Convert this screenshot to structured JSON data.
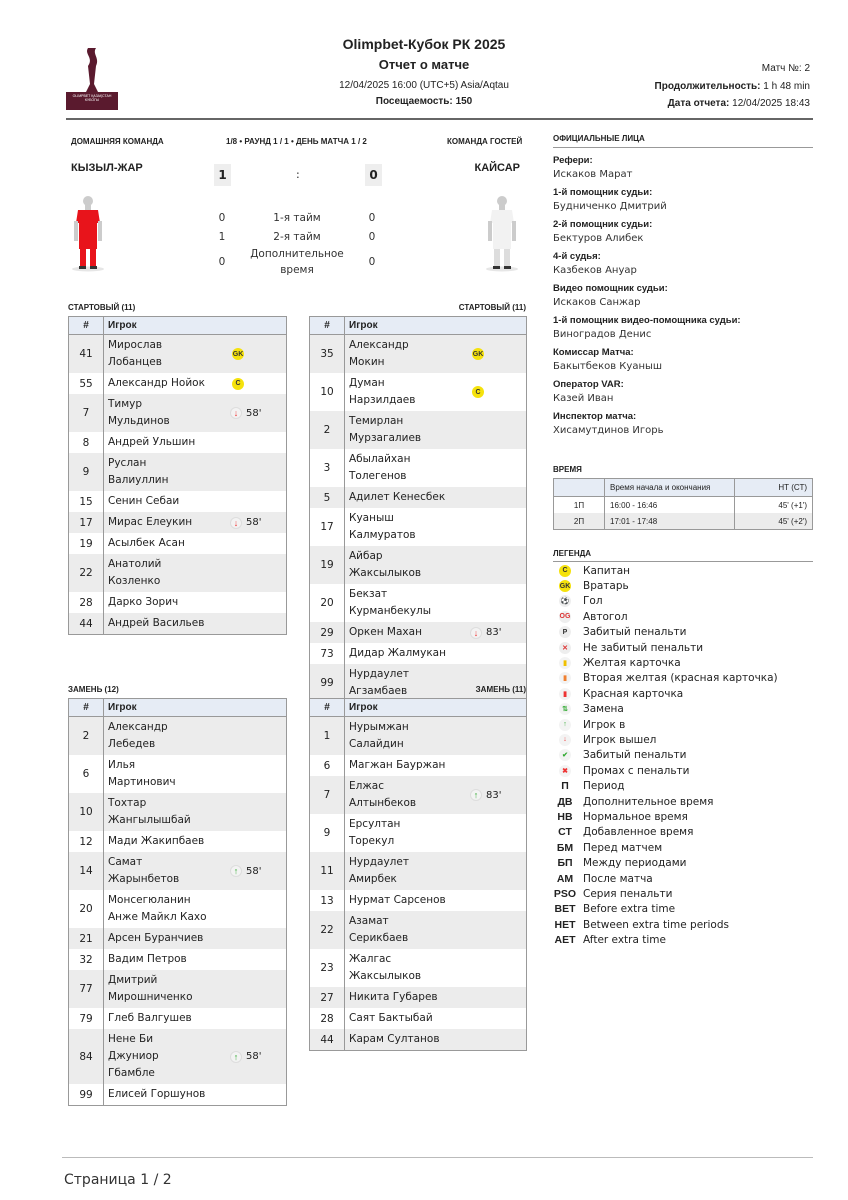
{
  "header": {
    "competition": "Olimpbet-Кубок РК 2025",
    "report_title": "Отчет о матче",
    "datetime": "12/04/2025 16:00 (UTC+5) Asia/Aqtau",
    "attendance_label": "Посещаемость:",
    "attendance": "150",
    "match_no_label": "Матч №:",
    "match_no": "2",
    "duration_label": "Продолжительность:",
    "duration": "1 h 48 min",
    "report_date_label": "Дата отчета:",
    "report_date": "12/04/2025 18:43",
    "logo_text": "OLIMPBET ҚАЗАҚСТАН КУБОГЫ"
  },
  "match": {
    "home_label": "ДОМАШНЯЯ КОМАНДА",
    "away_label": "КОМАНДА ГОСТЕЙ",
    "round": "1/8 • РАУНД 1 / 1 • ДЕНЬ МАТЧА 1 / 2",
    "home_team": "КЫЗЫЛ-ЖАР",
    "away_team": "КАЙСАР",
    "home_score": "1",
    "away_score": "0",
    "separator": ":",
    "home_kit_color": "#e8141b",
    "away_kit_color": "#f2f2f2",
    "periods": [
      {
        "label": "1-я тайм",
        "home": "0",
        "away": "0"
      },
      {
        "label": "2-я тайм",
        "home": "1",
        "away": "0"
      },
      {
        "label": "Дополнительное\nвремя",
        "home": "0",
        "away": "0"
      }
    ]
  },
  "tables": {
    "col_num": "#",
    "col_player": "Игрок",
    "home_start_title": "СТАРТОВЫЙ (11)",
    "away_start_title": "СТАРТОВЫЙ (11)",
    "home_subs_title": "ЗАМЕНЬ (12)",
    "away_subs_title": "ЗАМЕНЬ (11)",
    "home_start": [
      {
        "num": "41",
        "name": "Мирослав\nЛобанцев",
        "badge": "GK"
      },
      {
        "num": "55",
        "name": "Александр Нойок",
        "badge": "C"
      },
      {
        "num": "7",
        "name": "Тимур\nМульдинов",
        "event": "sub-out",
        "minute": "58'"
      },
      {
        "num": "8",
        "name": "Андрей Ульшин"
      },
      {
        "num": "9",
        "name": "Руслан\nВалиуллин"
      },
      {
        "num": "15",
        "name": "Сенин Себаи"
      },
      {
        "num": "17",
        "name": "Мирас Елеукин",
        "event": "sub-out",
        "minute": "58'"
      },
      {
        "num": "19",
        "name": "Асылбек Асан"
      },
      {
        "num": "22",
        "name": "Анатолий\nКозленко"
      },
      {
        "num": "28",
        "name": "Дарко Зорич"
      },
      {
        "num": "44",
        "name": "Андрей Васильев"
      }
    ],
    "away_start": [
      {
        "num": "35",
        "name": "Александр\nМокин",
        "badge": "GK"
      },
      {
        "num": "10",
        "name": "Думан\nНарзилдаев",
        "badge": "C"
      },
      {
        "num": "2",
        "name": "Темирлан\nМурзагалиев"
      },
      {
        "num": "3",
        "name": "Абылайхан\nТолегенов"
      },
      {
        "num": "5",
        "name": "Адилет Кенесбек"
      },
      {
        "num": "17",
        "name": "Куаныш\nКалмуратов"
      },
      {
        "num": "19",
        "name": "Айбар\nЖаксылыков"
      },
      {
        "num": "20",
        "name": "Бекзат\nКурманбекулы"
      },
      {
        "num": "29",
        "name": "Оркен Махан",
        "event": "sub-out",
        "minute": "83'"
      },
      {
        "num": "73",
        "name": "Дидар Жалмукан"
      },
      {
        "num": "99",
        "name": "Нурдаулет\nАгзамбаев"
      }
    ],
    "home_subs": [
      {
        "num": "2",
        "name": "Александр\nЛебедев"
      },
      {
        "num": "6",
        "name": "Илья\nМартинович"
      },
      {
        "num": "10",
        "name": "Тохтар\nЖангылышбай"
      },
      {
        "num": "12",
        "name": "Мади Жакипбаев"
      },
      {
        "num": "14",
        "name": "Самат\nЖарынбетов",
        "event": "sub-in",
        "minute": "58'"
      },
      {
        "num": "20",
        "name": "Монсегюланин\nАнже Майкл Кахо"
      },
      {
        "num": "21",
        "name": "Арсен Буранчиев"
      },
      {
        "num": "32",
        "name": "Вадим Петров"
      },
      {
        "num": "77",
        "name": "Дмитрий\nМирошниченко"
      },
      {
        "num": "79",
        "name": "Глеб Валгушев"
      },
      {
        "num": "84",
        "name": "Нене Би\nДжуниор\nГбамбле",
        "event": "sub-in",
        "minute": "58'"
      },
      {
        "num": "99",
        "name": "Елисей Горшунов\n "
      }
    ],
    "away_subs": [
      {
        "num": "1",
        "name": "Нурымжан\nСалайдин"
      },
      {
        "num": "6",
        "name": "Магжан Бауржан"
      },
      {
        "num": "7",
        "name": "Елжас\nАлтынбеков",
        "event": "sub-in",
        "minute": "83'"
      },
      {
        "num": "9",
        "name": "Ерсултан\nТорекул"
      },
      {
        "num": "11",
        "name": "Нурдаулет\nАмирбек"
      },
      {
        "num": "13",
        "name": "Нурмат Сарсенов"
      },
      {
        "num": "22",
        "name": "Азамат\nСерикбаев"
      },
      {
        "num": "23",
        "name": "Жалгас\nЖаксылыков"
      },
      {
        "num": "27",
        "name": "Никита Губарев"
      },
      {
        "num": "28",
        "name": "Саят Бактыбай"
      },
      {
        "num": "44",
        "name": "Карам Султанов"
      }
    ]
  },
  "officials": {
    "title": "ОФИЦИАЛЬНЫЕ ЛИЦА",
    "items": [
      {
        "role": "Рефери:",
        "name": "Искаков Марат"
      },
      {
        "role": "1-й помощник судьи:",
        "name": "Будниченко Дмитрий"
      },
      {
        "role": "2-й помощник судьи:",
        "name": "Бектуров Алибек"
      },
      {
        "role": "4-й судья:",
        "name": "Казбеков Ануар"
      },
      {
        "role": "Видео помощник судьи:",
        "name": "Искаков Санжар"
      },
      {
        "role": "1-й помощник видео-помощника судьи:",
        "name": "Виноградов Денис"
      },
      {
        "role": "Комиссар Матча:",
        "name": "Бакытбеков Куаныш"
      },
      {
        "role": "Оператор VAR:",
        "name": "Казей Иван"
      },
      {
        "role": "Инспектор матча:",
        "name": "Хисамутдинов Игорь"
      }
    ]
  },
  "time": {
    "title": "ВРЕМЯ",
    "col_period": "",
    "col_times": "Время начала и окончания",
    "col_duration": "НТ (СТ)",
    "rows": [
      {
        "period": "1П",
        "times": "16:00 - 16:46",
        "duration": "45' (+1')"
      },
      {
        "period": "2П",
        "times": "17:01 - 17:48",
        "duration": "45' (+2')"
      }
    ]
  },
  "legend": {
    "title": "ЛЕГЕНДА",
    "items": [
      {
        "key": "C",
        "icon": "captain",
        "text": "Капитан"
      },
      {
        "key": "GK",
        "icon": "goalkeeper",
        "text": "Вратарь"
      },
      {
        "key": "",
        "icon": "goal",
        "text": "Гол"
      },
      {
        "key": "OG",
        "icon": "own-goal",
        "text": "Автогол"
      },
      {
        "key": "P",
        "icon": "penalty-scored",
        "text": "Забитый пенальти"
      },
      {
        "key": "x",
        "icon": "penalty-missed",
        "text": "Не забитый пенальти"
      },
      {
        "key": "Y",
        "icon": "yellow-card",
        "text": "Желтая карточка"
      },
      {
        "key": "2Y",
        "icon": "second-yellow",
        "text": "Вторая желтая (красная карточка)"
      },
      {
        "key": "R",
        "icon": "red-card",
        "text": "Красная карточка"
      },
      {
        "key": "",
        "icon": "substitution",
        "text": "Замена"
      },
      {
        "key": "",
        "icon": "sub-in",
        "text": "Игрок в"
      },
      {
        "key": "",
        "icon": "sub-out",
        "text": "Игрок вышел"
      },
      {
        "key": "",
        "icon": "shootout-scored",
        "text": "Забитый пенальти"
      },
      {
        "key": "",
        "icon": "shootout-missed",
        "text": "Промах с пенальти"
      },
      {
        "key": "П",
        "text": "Период"
      },
      {
        "key": "ДВ",
        "text": "Дополнительное время"
      },
      {
        "key": "НВ",
        "text": "Нормальное время"
      },
      {
        "key": "СТ",
        "text": "Добавленное время"
      },
      {
        "key": "БМ",
        "text": "Перед матчем"
      },
      {
        "key": "БП",
        "text": "Между периодами"
      },
      {
        "key": "АМ",
        "text": "После матча"
      },
      {
        "key": "PSO",
        "text": "Серия пенальти"
      },
      {
        "key": "BET",
        "text": "Before extra time"
      },
      {
        "key": "HET",
        "text": "Between extra time periods"
      },
      {
        "key": "AET",
        "text": "After extra time"
      }
    ]
  },
  "footer": {
    "page": "Страница 1 / 2"
  }
}
